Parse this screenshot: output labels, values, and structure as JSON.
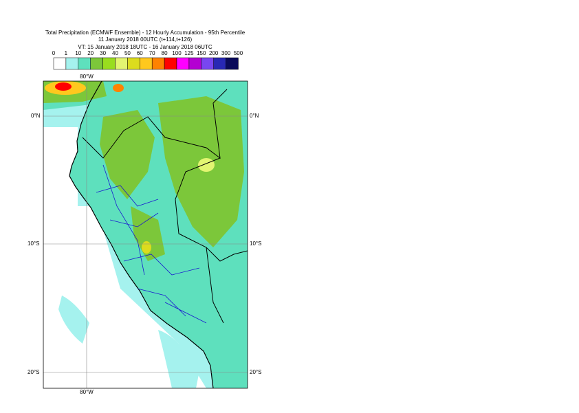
{
  "header": {
    "lines": [
      "Total Precipitation (ECMWF Ensemble) - 12 Hourly Accumulation - 95th Percentile",
      "11 January 2018 00UTC (t+114,t+126)",
      "VT: 15 January 2018 18UTC - 16 January 2018 06UTC"
    ]
  },
  "legend": {
    "labels": [
      "0",
      "1",
      "10",
      "20",
      "30",
      "40",
      "50",
      "60",
      "70",
      "80",
      "100",
      "125",
      "150",
      "200",
      "300",
      "500"
    ],
    "colors": [
      "#ffffff",
      "#a5f2ee",
      "#5ee0bd",
      "#7cc73a",
      "#99dd1f",
      "#e3f571",
      "#dcdc1e",
      "#ffc81e",
      "#ff8200",
      "#ff0000",
      "#ff00ff",
      "#b400d2",
      "#7846f0",
      "#2828b4",
      "#0a0a5a"
    ]
  },
  "map": {
    "lat_labels": [
      "0°N",
      "10°S",
      "20°S"
    ],
    "lon_labels": [
      "80°W"
    ]
  }
}
